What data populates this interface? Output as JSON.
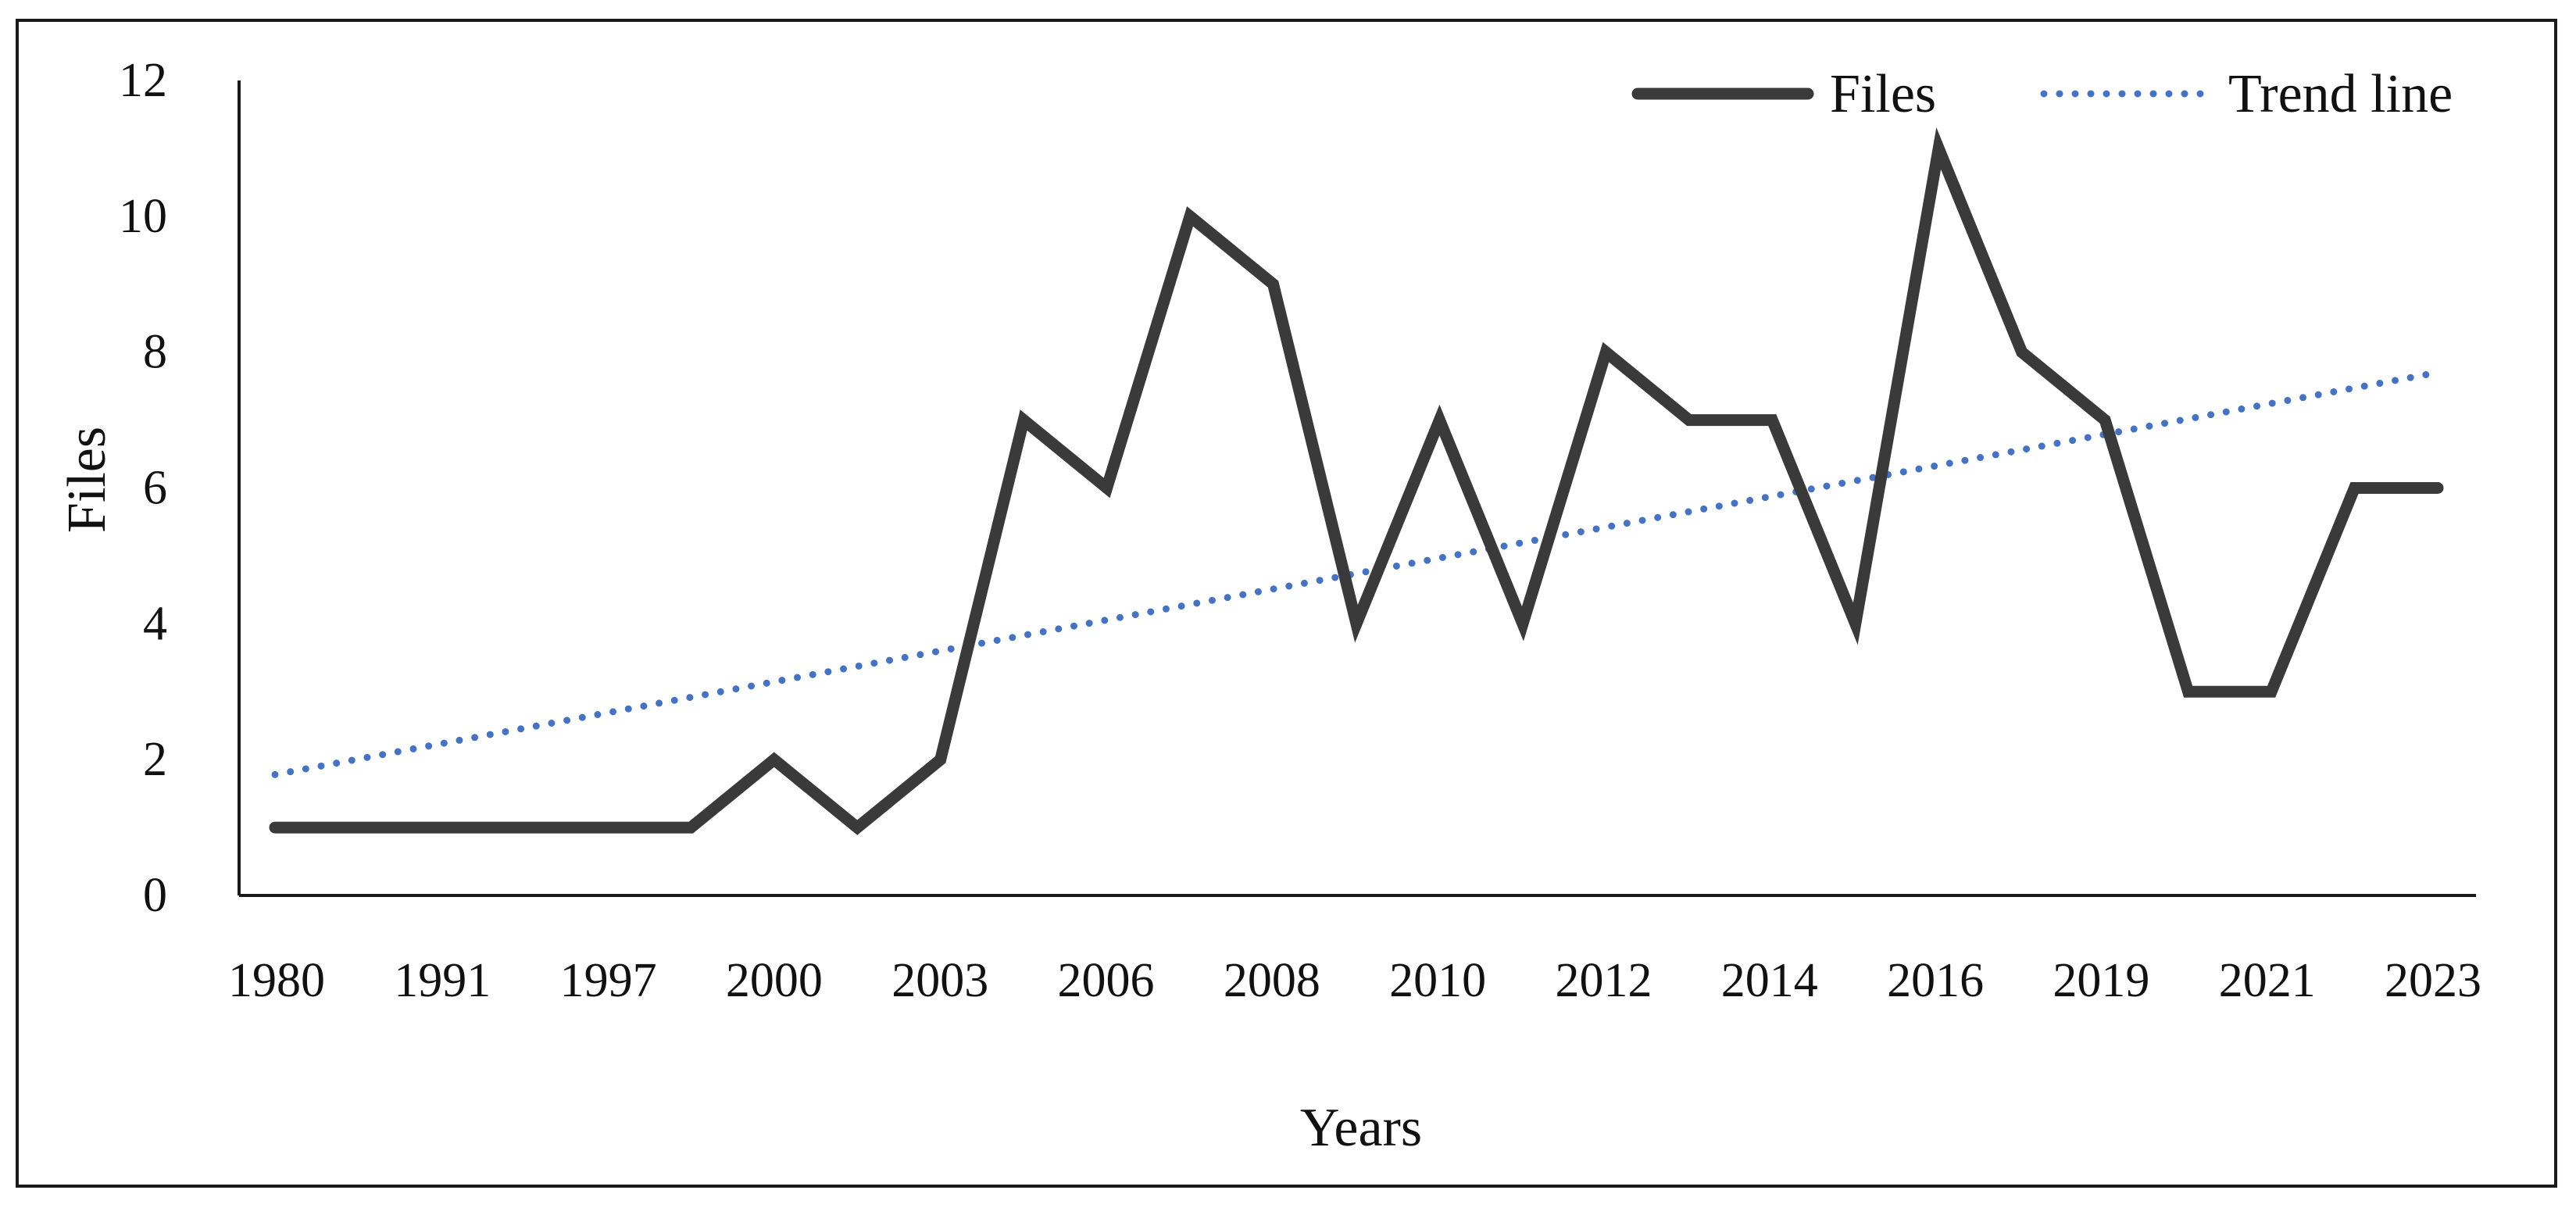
{
  "chart_data": {
    "type": "line",
    "xlabel": "Years",
    "ylabel": "Files",
    "ylim": [
      0,
      12
    ],
    "yticks": [
      0,
      2,
      4,
      6,
      8,
      10,
      12
    ],
    "x_tick_labels": [
      "1980",
      "1991",
      "1997",
      "2000",
      "2003",
      "2006",
      "2008",
      "2010",
      "2012",
      "2014",
      "2016",
      "2019",
      "2021",
      "2023"
    ],
    "series": [
      {
        "name": "Files",
        "color": "#3a3a3a",
        "values": [
          1,
          1,
          1,
          1,
          1,
          1,
          2,
          1,
          2,
          7,
          6,
          10,
          9,
          4,
          7,
          4,
          8,
          7,
          7,
          4,
          11,
          8,
          7,
          3,
          3,
          6,
          6
        ]
      },
      {
        "name": "Trend line",
        "color": "#4472c4",
        "style": "dotted",
        "trend_start": 1.78,
        "trend_end": 7.7
      }
    ],
    "grid": false,
    "legend": "top-right"
  }
}
